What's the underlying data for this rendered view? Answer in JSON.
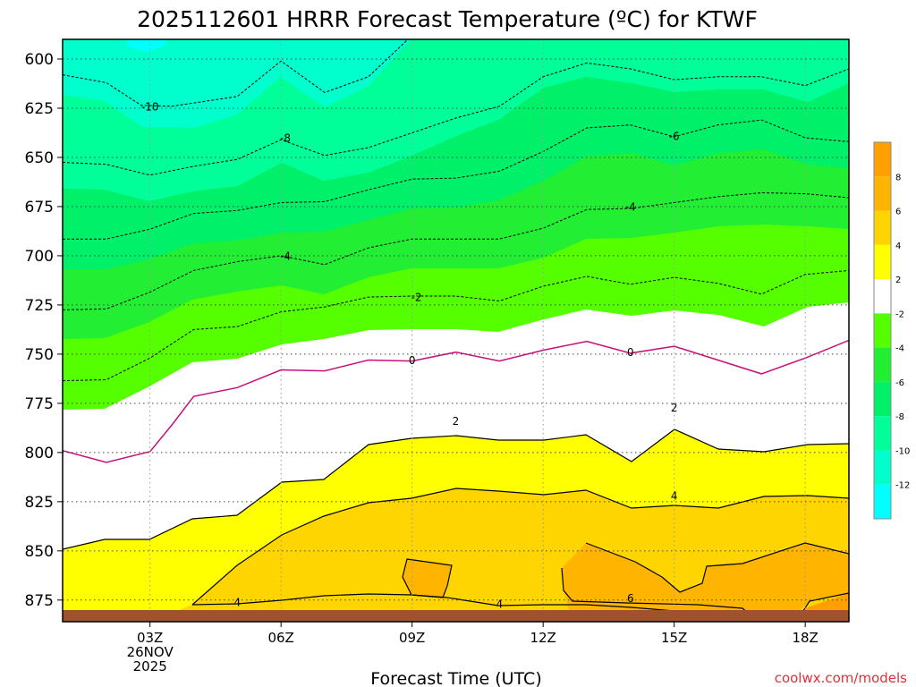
{
  "chart_data": {
    "type": "contour",
    "title": "2025112601 HRRR Forecast Temperature (ºC) for KTWF",
    "xlabel": "Forecast Time (UTC)",
    "credit": "coolwx.com/models",
    "y_ticks": [
      600,
      625,
      650,
      675,
      700,
      725,
      750,
      775,
      800,
      825,
      850,
      875
    ],
    "ylim": [
      590,
      886
    ],
    "x_ticks": [
      {
        "hour": 3,
        "lines": [
          "03Z",
          "26NOV",
          "2025"
        ]
      },
      {
        "hour": 6,
        "lines": [
          "06Z"
        ]
      },
      {
        "hour": 9,
        "lines": [
          "09Z"
        ]
      },
      {
        "hour": 12,
        "lines": [
          "12Z"
        ]
      },
      {
        "hour": 15,
        "lines": [
          "15Z"
        ]
      },
      {
        "hour": 18,
        "lines": [
          "18Z"
        ]
      }
    ],
    "xlim": [
      1,
      19
    ],
    "surface_fill_color": "#a0522d",
    "colorbar": {
      "labels": [
        "8",
        "6",
        "4",
        "2",
        "-2",
        "-4",
        "-6",
        "-8",
        "-10",
        "-12"
      ],
      "bands": [
        {
          "lo": 8,
          "hi": 10,
          "color": "#ff9f00"
        },
        {
          "lo": 6,
          "hi": 8,
          "color": "#ffb500"
        },
        {
          "lo": 4,
          "hi": 6,
          "color": "#ffd500"
        },
        {
          "lo": 2,
          "hi": 4,
          "color": "#ffff00"
        },
        {
          "lo": -2,
          "hi": 2,
          "color": "#ffffff"
        },
        {
          "lo": -4,
          "hi": -2,
          "color": "#55ff00"
        },
        {
          "lo": -6,
          "hi": -4,
          "color": "#22ee33"
        },
        {
          "lo": -8,
          "hi": -6,
          "color": "#00f06a"
        },
        {
          "lo": -10,
          "hi": -8,
          "color": "#00ff99"
        },
        {
          "lo": -12,
          "hi": -10,
          "color": "#00ffcc"
        },
        {
          "lo": -14,
          "hi": -12,
          "color": "#00ffff"
        }
      ]
    },
    "contours": [
      {
        "level": -10,
        "label": "-10",
        "color": "#000000",
        "dashed": true,
        "points": [
          [
            1,
            608
          ],
          [
            2,
            612
          ],
          [
            2.8,
            623.5
          ],
          [
            3.5,
            624
          ],
          [
            5,
            619
          ],
          [
            6,
            601
          ],
          [
            7,
            617
          ],
          [
            8,
            609
          ],
          [
            9,
            588
          ]
        ]
      },
      {
        "level": -8,
        "label": "-8",
        "color": "#000000",
        "dashed": true,
        "points": [
          [
            1,
            652.5
          ],
          [
            2,
            653.5
          ],
          [
            3,
            659
          ],
          [
            4,
            654.5
          ],
          [
            5,
            651
          ],
          [
            6,
            641
          ],
          [
            7,
            649
          ],
          [
            8,
            645
          ],
          [
            9,
            637.5
          ],
          [
            10,
            630
          ],
          [
            11,
            624
          ],
          [
            12,
            609
          ],
          [
            13,
            602
          ],
          [
            14,
            605
          ],
          [
            15,
            610.5
          ],
          [
            16,
            609
          ],
          [
            17,
            609
          ],
          [
            18,
            613.5
          ],
          [
            19,
            605
          ]
        ]
      },
      {
        "level": -6,
        "label": "-6",
        "color": "#000000",
        "dashed": true,
        "points": [
          [
            1,
            691.5
          ],
          [
            2,
            691.5
          ],
          [
            3,
            686.5
          ],
          [
            4,
            678.5
          ],
          [
            5,
            677
          ],
          [
            6,
            673
          ],
          [
            7,
            672.5
          ],
          [
            8,
            666.5
          ],
          [
            9,
            661
          ],
          [
            10,
            660.5
          ],
          [
            11,
            657
          ],
          [
            12,
            647
          ],
          [
            13,
            635
          ],
          [
            14,
            633.5
          ],
          [
            15,
            639.5
          ],
          [
            16,
            633.5
          ],
          [
            17,
            631
          ],
          [
            18,
            640
          ],
          [
            19,
            642
          ]
        ]
      },
      {
        "level": -4,
        "label": "-4",
        "color": "#000000",
        "dashed": true,
        "points": [
          [
            1,
            727.5
          ],
          [
            2,
            727
          ],
          [
            3,
            718.5
          ],
          [
            4,
            707.5
          ],
          [
            5,
            703
          ],
          [
            6,
            700
          ],
          [
            7,
            704.5
          ],
          [
            8,
            696
          ],
          [
            9,
            691.5
          ],
          [
            10,
            691.5
          ],
          [
            11,
            691.5
          ],
          [
            12,
            686
          ],
          [
            13,
            676.5
          ],
          [
            14,
            676
          ],
          [
            15,
            673
          ],
          [
            16,
            670
          ],
          [
            17,
            668
          ],
          [
            18,
            668.5
          ],
          [
            19,
            670.5
          ]
        ]
      },
      {
        "level": -2,
        "label": "-2",
        "color": "#000000",
        "dashed": true,
        "points": [
          [
            1,
            763.5
          ],
          [
            2,
            763
          ],
          [
            3,
            752
          ],
          [
            4,
            737.5
          ],
          [
            5,
            736
          ],
          [
            6,
            728.5
          ],
          [
            7,
            726
          ],
          [
            8,
            721
          ],
          [
            9,
            720.5
          ],
          [
            10,
            720.5
          ],
          [
            11,
            723
          ],
          [
            12,
            715.5
          ],
          [
            13,
            710.5
          ],
          [
            14,
            714.5
          ],
          [
            15,
            711
          ],
          [
            16,
            714
          ],
          [
            17,
            719.5
          ],
          [
            18,
            709.5
          ],
          [
            19,
            707.5
          ]
        ]
      },
      {
        "level": 0,
        "label": "0",
        "color": "#c8107a",
        "dashed": false,
        "points": [
          [
            1,
            799
          ],
          [
            2,
            805
          ],
          [
            3,
            799.5
          ],
          [
            3.5,
            786
          ],
          [
            4,
            771.5
          ],
          [
            5,
            767
          ],
          [
            6,
            758
          ],
          [
            7,
            758.5
          ],
          [
            8,
            753
          ],
          [
            9,
            753.5
          ],
          [
            10,
            749
          ],
          [
            11,
            753.5
          ],
          [
            12,
            748
          ],
          [
            13,
            743.5
          ],
          [
            14,
            749.5
          ],
          [
            15,
            746
          ],
          [
            16,
            753
          ],
          [
            17,
            760
          ],
          [
            18,
            752
          ],
          [
            19,
            743
          ]
        ]
      }
    ],
    "contour_labels": [
      {
        "text": "-10",
        "hour": 3.0,
        "p": 624
      },
      {
        "text": "-8",
        "hour": 6.1,
        "p": 640
      },
      {
        "text": "-6",
        "hour": 15.0,
        "p": 639
      },
      {
        "text": "-4",
        "hour": 6.1,
        "p": 700
      },
      {
        "text": "-4",
        "hour": 14.0,
        "p": 675
      },
      {
        "text": "-2",
        "hour": 9.1,
        "p": 721
      },
      {
        "text": "0",
        "hour": 9.0,
        "p": 753
      },
      {
        "text": "0",
        "hour": 14.0,
        "p": 749
      },
      {
        "text": "2",
        "hour": 10.0,
        "p": 784
      },
      {
        "text": "2",
        "hour": 15.0,
        "p": 777
      },
      {
        "text": "4",
        "hour": 15.0,
        "p": 822
      },
      {
        "text": "4",
        "hour": 5.0,
        "p": 876
      },
      {
        "text": "4",
        "hour": 11.0,
        "p": 877
      },
      {
        "text": "6",
        "hour": 14.0,
        "p": 874
      }
    ]
  }
}
